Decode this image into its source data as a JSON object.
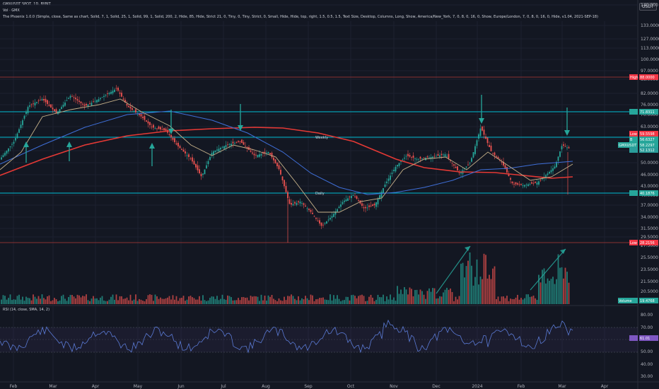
{
  "header": {
    "symbol_line": "GMXUSDT SPOT, 1D, BYBIT",
    "vol_line": "Vol · GMX",
    "indicator_line": "The Phoenix 1.0.0 (Simple, close, Same as chart, Solid, 7, 1, Solid, 25, 1, Solid, 99, 1, Solid, 200, 2, Hide, 85, Hide, Strict 21, 0, Tiny, 0, Tiny, Strict, 0, Small, Hide, Hide, top, right, 1.5, 0.5, 1.5, Text Size, Desktop, Columns, Long, Show, America/New_York, 7, 0, 8, 0, 16, 0, Show, Europe/London, 7, 0, 8, 0, 16, 0, Hide, v1.04, 2021-SEP-18)",
    "currency": "USDT"
  },
  "price_axis": [
    "140.000",
    "133.0000",
    "127.0000",
    "113.0000",
    "100.0000",
    "97.0000",
    "88.0000",
    "82.0000",
    "76.0000",
    "70.0000",
    "63.0000",
    "58.0000",
    "55.0000",
    "50.0000",
    "46.0000",
    "43.0000",
    "40.0000",
    "37.0000",
    "34.0000",
    "31.5000",
    "29.5000"
  ],
  "volume_axis": [
    "27.5000",
    "25.5000",
    "23.5000",
    "21.5000",
    "20.5000"
  ],
  "rsi_axis": [
    "80.00",
    "70.00",
    "60.00",
    "50.00",
    "40.00",
    "30.00"
  ],
  "time_axis": [
    "Feb",
    "Mar",
    "Apr",
    "May",
    "Jun",
    "Jul",
    "Aug",
    "Sep",
    "Oct",
    "Nov",
    "Dec",
    "2024",
    "Feb",
    "Mar",
    "Apr"
  ],
  "tags": {
    "high": {
      "label": "High",
      "value": "88.0000",
      "color": "#f23645"
    },
    "level1": {
      "value": "71.8311",
      "color": "#26a69a"
    },
    "low_s": {
      "label": "Low",
      "value": "59.5598",
      "color": "#f23645"
    },
    "level2": {
      "label": "B",
      "value": "56.6327",
      "color": "#26a69a"
    },
    "current": {
      "label": "GMXUSDT",
      "value": "58.2297",
      "color": "#26a69a"
    },
    "level3": {
      "value": "52.1312",
      "color": "#2a9d9a"
    },
    "level4": {
      "value": "40.1876",
      "color": "#26a69a"
    },
    "low": {
      "label": "Low",
      "value": "28.2156",
      "color": "#f23645"
    },
    "volume": {
      "label": "Volume",
      "value": "19.4768",
      "color": "#26a69a"
    },
    "rsi": {
      "value": "61.01",
      "color": "#7e57c2"
    }
  },
  "labels": {
    "weekly": "Weekly",
    "daily": "Daily"
  },
  "colors": {
    "bg": "#131722",
    "up": "#26a69a",
    "down": "#ef5350",
    "level": "#00bcd4",
    "ma200": "#e53935",
    "ma99": "#3f6fd8",
    "ma25": "#c7b28a",
    "rsi": "#5b7bd6"
  }
}
